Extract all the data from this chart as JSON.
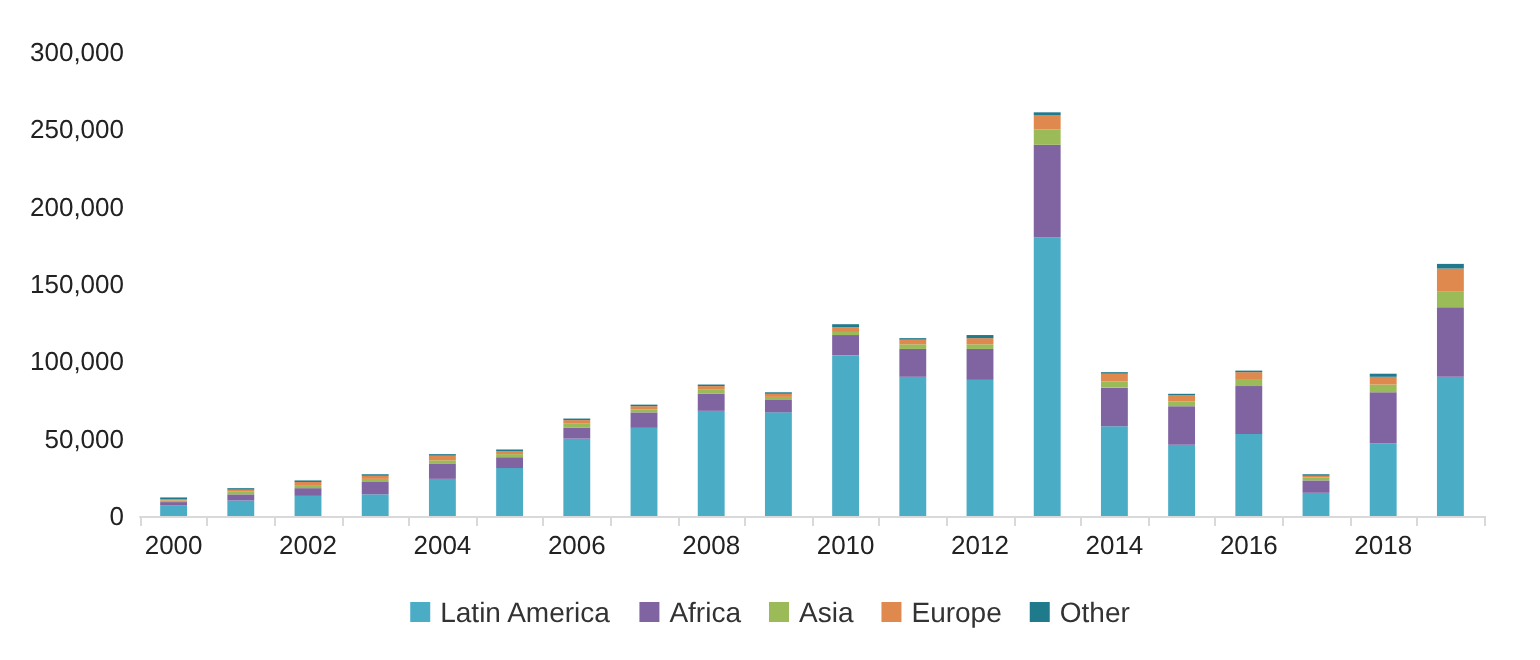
{
  "chart_data": {
    "type": "bar",
    "stacked": true,
    "grid": false,
    "legend": "bottom",
    "categories": [
      "2000",
      null,
      "2002",
      null,
      "2004",
      null,
      "2006",
      null,
      "2008",
      null,
      "2010",
      null,
      "2012",
      null,
      "2014",
      null,
      "2016",
      null,
      "2018",
      null
    ],
    "ylim": [
      0,
      300000
    ],
    "yticks": [
      {
        "value": 0,
        "label": "0"
      },
      {
        "value": 50000,
        "label": "50,000"
      },
      {
        "value": 100000,
        "label": "100,000"
      },
      {
        "value": 150000,
        "label": "150,000"
      },
      {
        "value": 200000,
        "label": "200,000"
      },
      {
        "value": 250000,
        "label": "250,000"
      },
      {
        "value": 300000,
        "label": "300,000"
      }
    ],
    "series": [
      {
        "name": "Latin America",
        "color": "#4bacc6",
        "values": [
          7000,
          10000,
          13000,
          14000,
          24000,
          31000,
          50000,
          57000,
          68000,
          67000,
          104000,
          90000,
          88000,
          180000,
          58000,
          46000,
          53000,
          15000,
          47000,
          90000
        ]
      },
      {
        "name": "Africa",
        "color": "#8064a2",
        "values": [
          2000,
          4000,
          5000,
          8000,
          10000,
          7000,
          7000,
          10000,
          11000,
          8000,
          13000,
          18000,
          20000,
          60000,
          25000,
          25000,
          31000,
          8000,
          33000,
          45000
        ]
      },
      {
        "name": "Asia",
        "color": "#9bbb59",
        "values": [
          1000,
          2000,
          2000,
          2000,
          2000,
          2000,
          3000,
          2000,
          3000,
          2000,
          2000,
          3000,
          3000,
          10000,
          4000,
          3000,
          4000,
          2000,
          5000,
          10000
        ]
      },
      {
        "name": "Europe",
        "color": "#e0894f",
        "values": [
          1000,
          1000,
          2000,
          2000,
          3000,
          2000,
          2000,
          2000,
          2000,
          2000,
          3000,
          3000,
          4000,
          9000,
          5000,
          4000,
          5000,
          1000,
          5000,
          15000
        ]
      },
      {
        "name": "Other",
        "color": "#1f7a8c",
        "values": [
          1000,
          1000,
          1000,
          1000,
          1000,
          1000,
          1000,
          1000,
          1000,
          1000,
          2000,
          1000,
          2000,
          2000,
          1000,
          1000,
          1000,
          1000,
          2000,
          3000
        ]
      }
    ]
  }
}
